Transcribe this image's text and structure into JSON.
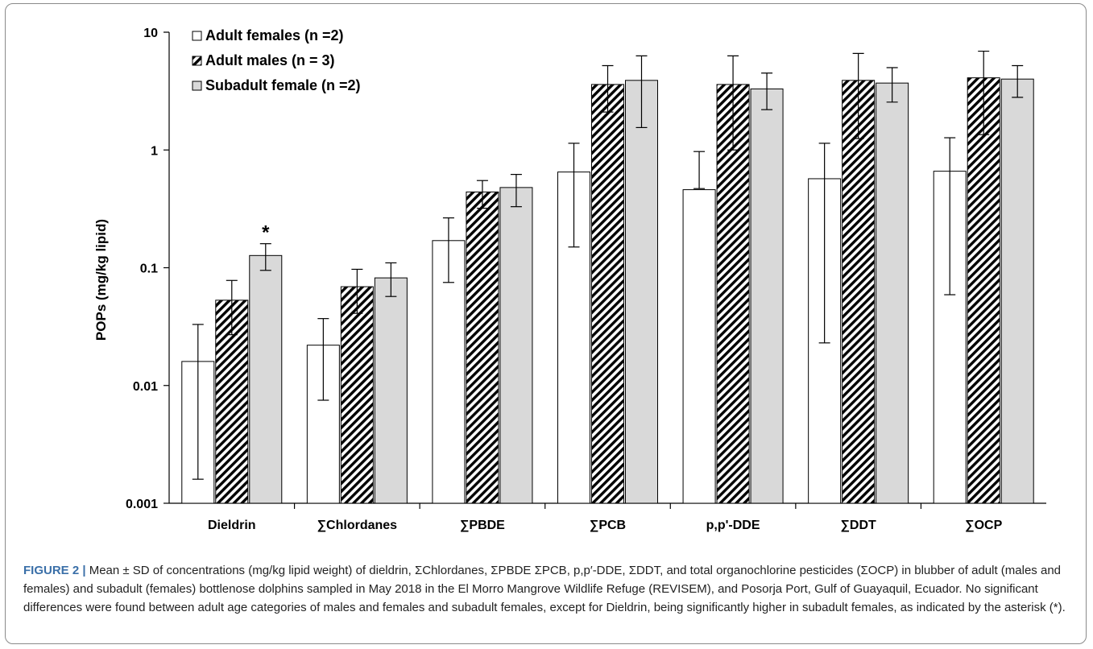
{
  "chart_data": {
    "type": "bar",
    "yscale": "log",
    "ylim": [
      0.001,
      10
    ],
    "yticks": [
      "10",
      "1",
      "0.1",
      "0.01",
      "0.001"
    ],
    "ylabel": "POPs (mg/kg lipid)",
    "xlabel": "",
    "categories": [
      "Dieldrin",
      "∑Chlordanes",
      "∑PBDE",
      "∑PCB",
      "p,p'-DDE",
      "∑DDT",
      "∑OCP"
    ],
    "series": [
      {
        "name": "Adult females (n =2)",
        "pattern": "white",
        "values": [
          0.016,
          0.022,
          0.17,
          0.65,
          0.46,
          0.57,
          0.66
        ],
        "err_low": [
          0.0016,
          0.0075,
          0.075,
          0.15,
          0.47,
          0.023,
          0.059
        ],
        "err_high": [
          0.033,
          0.037,
          0.265,
          1.14,
          0.97,
          1.14,
          1.27
        ]
      },
      {
        "name": "Adult males (n = 3)",
        "pattern": "hatched",
        "values": [
          0.053,
          0.069,
          0.44,
          3.6,
          3.6,
          3.9,
          4.1
        ],
        "err_low": [
          0.027,
          0.041,
          0.32,
          2.1,
          1.0,
          1.25,
          1.35
        ],
        "err_high": [
          0.078,
          0.097,
          0.55,
          5.2,
          6.3,
          6.6,
          6.9
        ]
      },
      {
        "name": "Subadult female (n =2)",
        "pattern": "gray",
        "values": [
          0.127,
          0.082,
          0.48,
          3.9,
          3.3,
          3.7,
          4.0
        ],
        "err_low": [
          0.095,
          0.057,
          0.33,
          1.55,
          2.2,
          2.55,
          2.8
        ],
        "err_high": [
          0.16,
          0.11,
          0.62,
          6.3,
          4.5,
          5.0,
          5.2
        ]
      }
    ],
    "annotations": [
      {
        "text": "*",
        "category": "Dieldrin",
        "series": 2
      }
    ],
    "legend_position": "top-left",
    "colors": {
      "female": "#ffffff",
      "male_hatch": "#000000",
      "subadult": "#d9d9d9",
      "axis": "#000000"
    }
  },
  "caption": {
    "label": "FIGURE 2 |",
    "text": " Mean ± SD of concentrations (mg/kg lipid weight) of dieldrin, ΣChlordanes, ΣPBDE ΣPCB, p,p′-DDE, ΣDDT, and total organochlorine pesticides (ΣOCP) in blubber of adult (males and females) and subadult (females) bottlenose dolphins sampled in May 2018 in the El Morro Mangrove Wildlife Refuge (REVISEM), and Posorja Port, Gulf of Guayaquil, Ecuador. No significant differences were found between adult age categories of males and females and subadult females, except for Dieldrin, being significantly higher in subadult females, as indicated by the asterisk (*)."
  }
}
